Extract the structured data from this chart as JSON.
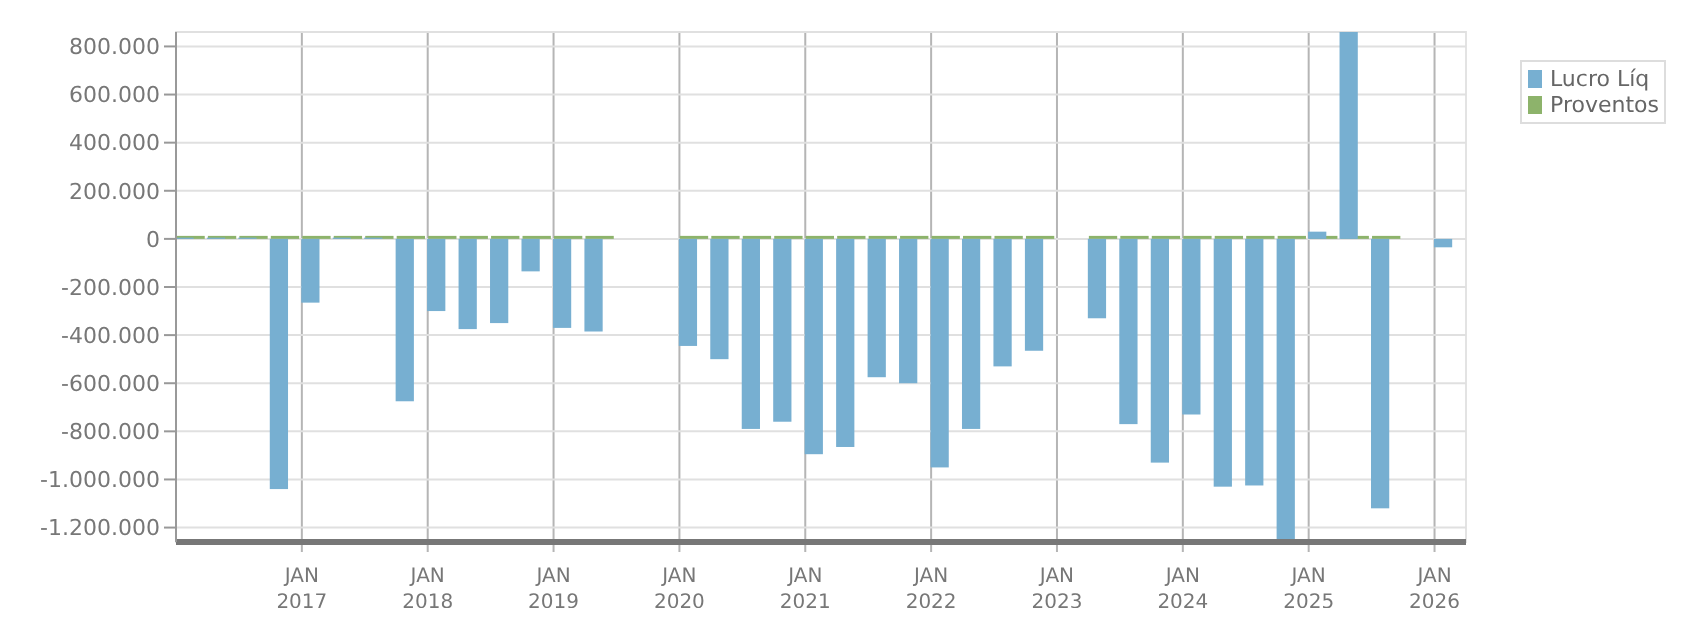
{
  "chart_data": {
    "type": "bar",
    "x": [
      "2016-01",
      "2016-04",
      "2016-07",
      "2016-10",
      "2017-01",
      "2017-04",
      "2017-07",
      "2017-10",
      "2018-01",
      "2018-04",
      "2018-07",
      "2018-10",
      "2019-01",
      "2019-04",
      "2019-07",
      "2019-10",
      "2020-01",
      "2020-04",
      "2020-07",
      "2020-10",
      "2021-01",
      "2021-04",
      "2021-07",
      "2021-10",
      "2022-01",
      "2022-04",
      "2022-07",
      "2022-10",
      "2023-01",
      "2023-04",
      "2023-07",
      "2023-10",
      "2024-01",
      "2024-04",
      "2024-07",
      "2024-10",
      "2025-01",
      "2025-04",
      "2025-07",
      "2025-10",
      "2026-01"
    ],
    "series": [
      {
        "name": "Lucro Líq",
        "color": "#77afd1",
        "values": [
          5000,
          5000,
          5000,
          -1040000,
          -265000,
          5000,
          5000,
          -675000,
          -300000,
          -375000,
          -350000,
          -135000,
          -370000,
          -385000,
          null,
          null,
          -445000,
          -500000,
          -790000,
          -760000,
          -895000,
          -865000,
          -575000,
          -600000,
          -950000,
          -790000,
          -530000,
          -465000,
          null,
          -330000,
          -770000,
          -930000,
          -730000,
          -1030000,
          -1025000,
          -1260000,
          30000,
          860000,
          -1120000,
          null,
          -35000
        ]
      },
      {
        "name": "Proventos",
        "color": "#8db36b",
        "values": [
          0,
          0,
          0,
          0,
          0,
          0,
          0,
          0,
          0,
          0,
          0,
          0,
          0,
          0,
          null,
          null,
          0,
          0,
          0,
          0,
          0,
          0,
          0,
          0,
          0,
          0,
          0,
          0,
          null,
          0,
          0,
          0,
          0,
          0,
          0,
          0,
          0,
          0,
          0,
          null,
          null
        ]
      }
    ],
    "xlim": [
      "2016-01",
      "2026-04"
    ],
    "xticks": [
      {
        "value": "2017-01",
        "label": "JAN\n2017"
      },
      {
        "value": "2018-01",
        "label": "JAN\n2018"
      },
      {
        "value": "2019-01",
        "label": "JAN\n2019"
      },
      {
        "value": "2020-01",
        "label": "JAN\n2020"
      },
      {
        "value": "2021-01",
        "label": "JAN\n2021"
      },
      {
        "value": "2022-01",
        "label": "JAN\n2022"
      },
      {
        "value": "2023-01",
        "label": "JAN\n2023"
      },
      {
        "value": "2024-01",
        "label": "JAN\n2024"
      },
      {
        "value": "2025-01",
        "label": "JAN\n2025"
      },
      {
        "value": "2026-01",
        "label": "JAN\n2026"
      }
    ],
    "ylim": [
      -1260000,
      860000
    ],
    "yticks": [
      {
        "value": 800000,
        "label": "800.000"
      },
      {
        "value": 600000,
        "label": "600.000"
      },
      {
        "value": 400000,
        "label": "400.000"
      },
      {
        "value": 200000,
        "label": "200.000"
      },
      {
        "value": 0,
        "label": "0"
      },
      {
        "value": -200000,
        "label": "-200.000"
      },
      {
        "value": -400000,
        "label": "-400.000"
      },
      {
        "value": -600000,
        "label": "-600.000"
      },
      {
        "value": -800000,
        "label": "-800.000"
      },
      {
        "value": -1000000,
        "label": "-1.000.000"
      },
      {
        "value": -1200000,
        "label": "-1.200.000"
      }
    ],
    "grid": true,
    "legend": "top right"
  }
}
